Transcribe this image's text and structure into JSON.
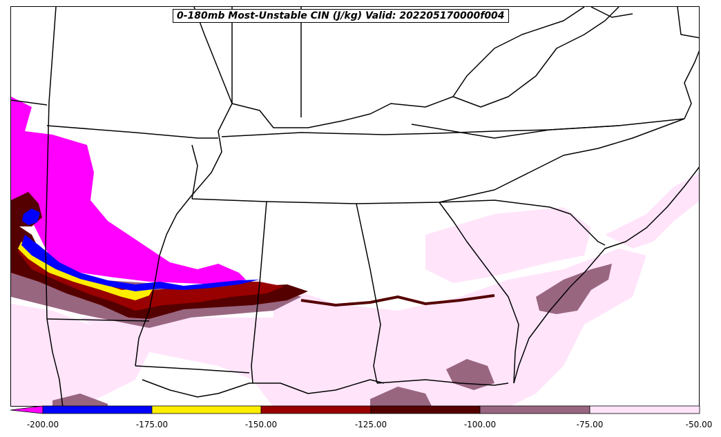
{
  "title": "0-180mb Most-Unstable CIN (J/kg) Valid: 202205170000f004",
  "colorbar": {
    "ticks": [
      "-200.00",
      "-175.00",
      "-150.00",
      "-125.00",
      "-100.00",
      "-75.00",
      "-50.00"
    ],
    "colors": [
      "#ff00ff",
      "#0000ff",
      "#ffee00",
      "#990000",
      "#550000",
      "#996680",
      "#ffe4fa"
    ],
    "extend": "min"
  },
  "map": {
    "background": "#ffffff",
    "boundary_color": "#000000",
    "regions": [
      "Southeastern United States"
    ]
  }
}
